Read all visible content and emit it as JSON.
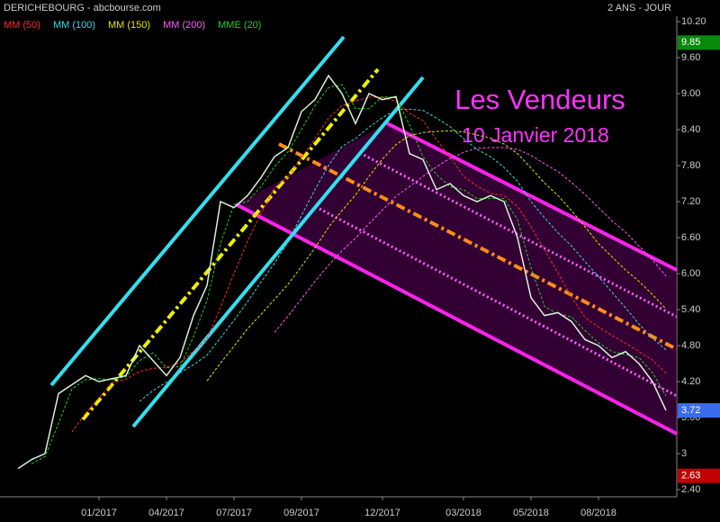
{
  "chart_data": {
    "type": "line",
    "title": "DERICHEBOURG - abcbourse.com",
    "subtitle": "2 ANS - JOUR",
    "annotations": [
      "Les Vendeurs",
      "10 Janvier 2018"
    ],
    "categories": [
      null,
      null,
      null,
      null,
      null,
      null,
      "01/2017",
      null,
      null,
      null,
      null,
      "04/2017",
      null,
      null,
      null,
      null,
      "07/2017",
      null,
      null,
      null,
      null,
      "09/2017",
      null,
      null,
      null,
      null,
      null,
      "12/2017",
      null,
      null,
      null,
      null,
      null,
      "03/2018",
      null,
      null,
      null,
      null,
      "05/2018",
      null,
      null,
      null,
      null,
      "08/2018",
      null,
      null,
      null,
      null,
      null
    ],
    "values": [
      2.75,
      2.9,
      3.0,
      4.0,
      4.15,
      4.3,
      4.2,
      4.25,
      4.3,
      4.8,
      4.55,
      4.3,
      4.6,
      5.3,
      5.8,
      7.2,
      7.1,
      7.3,
      7.6,
      7.95,
      8.1,
      8.7,
      8.9,
      9.3,
      9.0,
      8.5,
      9.0,
      8.9,
      8.95,
      8.0,
      7.9,
      7.4,
      7.5,
      7.3,
      7.2,
      7.3,
      7.2,
      6.6,
      5.6,
      5.3,
      5.35,
      5.2,
      4.9,
      4.8,
      4.6,
      4.7,
      4.5,
      4.2,
      3.72
    ],
    "color": "#d8f0d8",
    "series": [
      {
        "name": "MM (50)",
        "color": "#ff2a2a",
        "values": [
          null,
          null,
          null,
          null,
          3.36,
          3.67,
          3.93,
          4.18,
          4.24,
          4.37,
          4.42,
          4.44,
          4.51,
          4.71,
          4.91,
          5.44,
          6.0,
          6.54,
          7.0,
          7.43,
          7.61,
          7.93,
          8.25,
          8.59,
          8.8,
          8.88,
          8.94,
          8.94,
          8.87,
          8.67,
          8.55,
          8.23,
          7.95,
          7.62,
          7.46,
          7.34,
          7.3,
          7.12,
          6.78,
          6.4,
          6.01,
          5.61,
          5.27,
          5.11,
          4.97,
          4.84,
          4.7,
          4.56,
          4.34
        ]
      },
      {
        "name": "MM (100)",
        "color": "#3ed6e6",
        "values": [
          null,
          null,
          null,
          null,
          null,
          null,
          null,
          null,
          null,
          3.87,
          4.05,
          4.19,
          4.35,
          4.48,
          4.64,
          4.93,
          5.22,
          5.53,
          5.86,
          6.17,
          6.53,
          6.97,
          7.4,
          7.8,
          8.12,
          8.25,
          8.44,
          8.6,
          8.73,
          8.74,
          8.72,
          8.59,
          8.45,
          8.25,
          8.07,
          7.95,
          7.77,
          7.54,
          7.2,
          6.93,
          6.68,
          6.46,
          6.2,
          5.95,
          5.69,
          5.43,
          5.16,
          4.92,
          4.73
        ]
      },
      {
        "name": "MM (150)",
        "color": "#e8e400",
        "values": [
          null,
          null,
          null,
          null,
          null,
          null,
          null,
          null,
          null,
          null,
          null,
          null,
          null,
          null,
          4.21,
          4.51,
          4.79,
          5.08,
          5.32,
          5.57,
          5.82,
          6.12,
          6.43,
          6.77,
          7.05,
          7.31,
          7.62,
          7.91,
          8.15,
          8.3,
          8.35,
          8.37,
          8.38,
          8.36,
          8.31,
          8.26,
          8.16,
          8.0,
          7.76,
          7.51,
          7.3,
          7.05,
          6.78,
          6.5,
          6.28,
          6.06,
          5.87,
          5.65,
          5.41
        ]
      },
      {
        "name": "MM (200)",
        "color": "#ff5cff",
        "values": [
          null,
          null,
          null,
          null,
          null,
          null,
          null,
          null,
          null,
          null,
          null,
          null,
          null,
          null,
          null,
          null,
          null,
          null,
          null,
          5.02,
          5.29,
          5.58,
          5.87,
          6.14,
          6.38,
          6.59,
          6.83,
          7.06,
          7.29,
          7.45,
          7.62,
          7.78,
          7.92,
          8.02,
          8.09,
          8.1,
          8.1,
          8.07,
          7.97,
          7.83,
          7.7,
          7.52,
          7.32,
          7.1,
          6.88,
          6.69,
          6.46,
          6.23,
          5.96
        ]
      },
      {
        "name": "MME (20)",
        "color": "#22cc22",
        "values": [
          null,
          2.83,
          2.95,
          3.5,
          4.08,
          4.23,
          4.25,
          4.23,
          4.28,
          4.55,
          4.68,
          4.43,
          4.45,
          4.95,
          5.55,
          6.5,
          7.15,
          7.2,
          7.45,
          7.78,
          8.03,
          8.4,
          8.8,
          9.1,
          9.15,
          8.75,
          8.75,
          8.95,
          8.93,
          8.48,
          7.95,
          7.65,
          7.45,
          7.4,
          7.25,
          7.25,
          7.25,
          6.9,
          6.1,
          5.45,
          5.33,
          5.28,
          5.05,
          4.85,
          4.7,
          4.65,
          4.6,
          4.35,
          3.96
        ]
      }
    ],
    "price_labels": [
      {
        "value": 9.85,
        "color": "#0a8a0a"
      },
      {
        "value": 3.72,
        "color": "#3a6cf0"
      },
      {
        "value": 2.63,
        "color": "#c00000"
      }
    ],
    "ylim": [
      2.4,
      10.2
    ],
    "yticks": [
      {
        "value": 2.4,
        "label": "2.40"
      },
      3,
      {
        "value": 3.6,
        "label": "3.60"
      },
      {
        "value": 4.2,
        "label": "4.20"
      },
      {
        "value": 4.8,
        "label": "4.80"
      },
      {
        "value": 5.4,
        "label": "5.40"
      },
      {
        "value": 6,
        "label": "6.00"
      },
      {
        "value": 6.6,
        "label": "6.60"
      },
      {
        "value": 7.2,
        "label": "7.20"
      },
      {
        "value": 7.8,
        "label": "7.80"
      },
      {
        "value": 8.4,
        "label": "8.40"
      },
      {
        "value": 9,
        "label": "9.00"
      },
      {
        "value": 9.6,
        "label": "9.60"
      },
      {
        "value": 10.2,
        "label": "10.20"
      }
    ]
  }
}
